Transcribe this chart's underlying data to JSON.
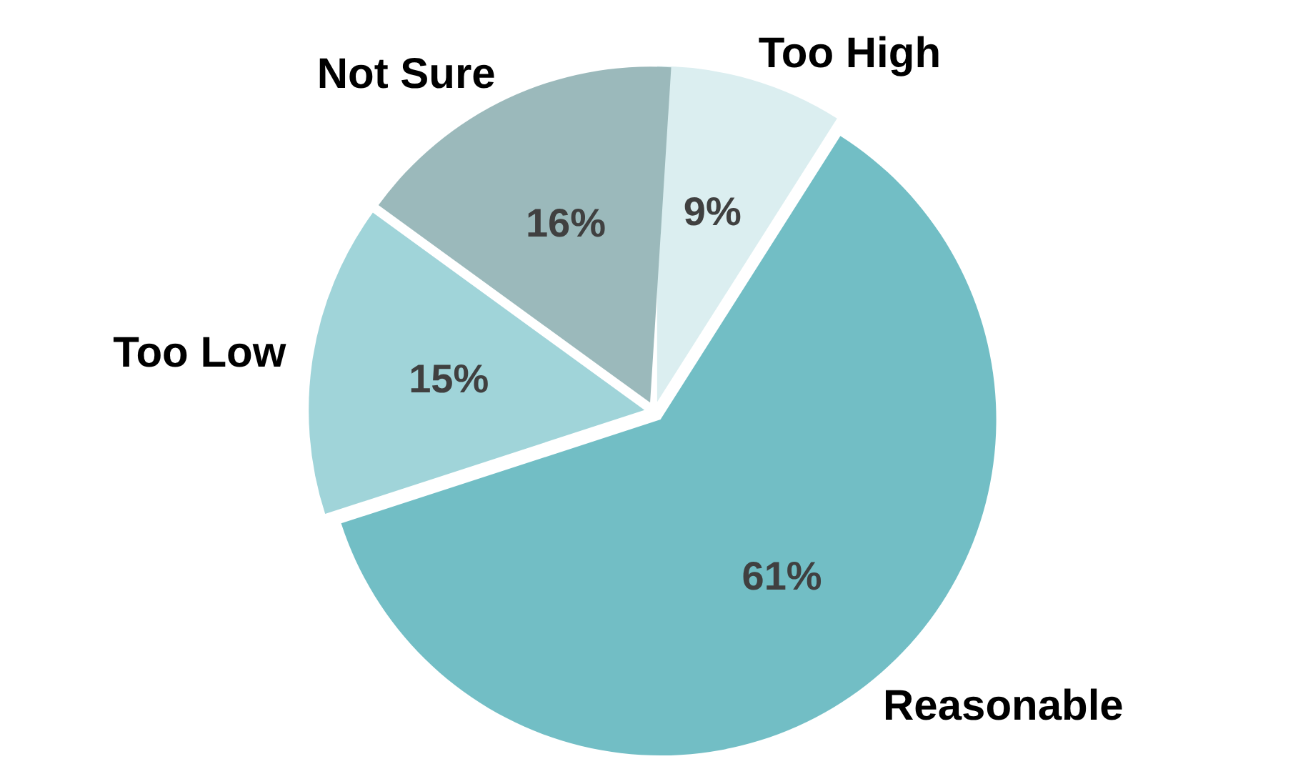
{
  "chart_data": {
    "type": "pie",
    "categories": [
      "Too High",
      "Reasonable",
      "Too Low",
      "Not Sure"
    ],
    "values": [
      9,
      61,
      15,
      16
    ],
    "value_labels": [
      "9%",
      "61%",
      "15%",
      "16%"
    ],
    "colors": [
      "#dbeef0",
      "#72bec5",
      "#a0d4d9",
      "#9bb9bb"
    ],
    "legend": false
  }
}
